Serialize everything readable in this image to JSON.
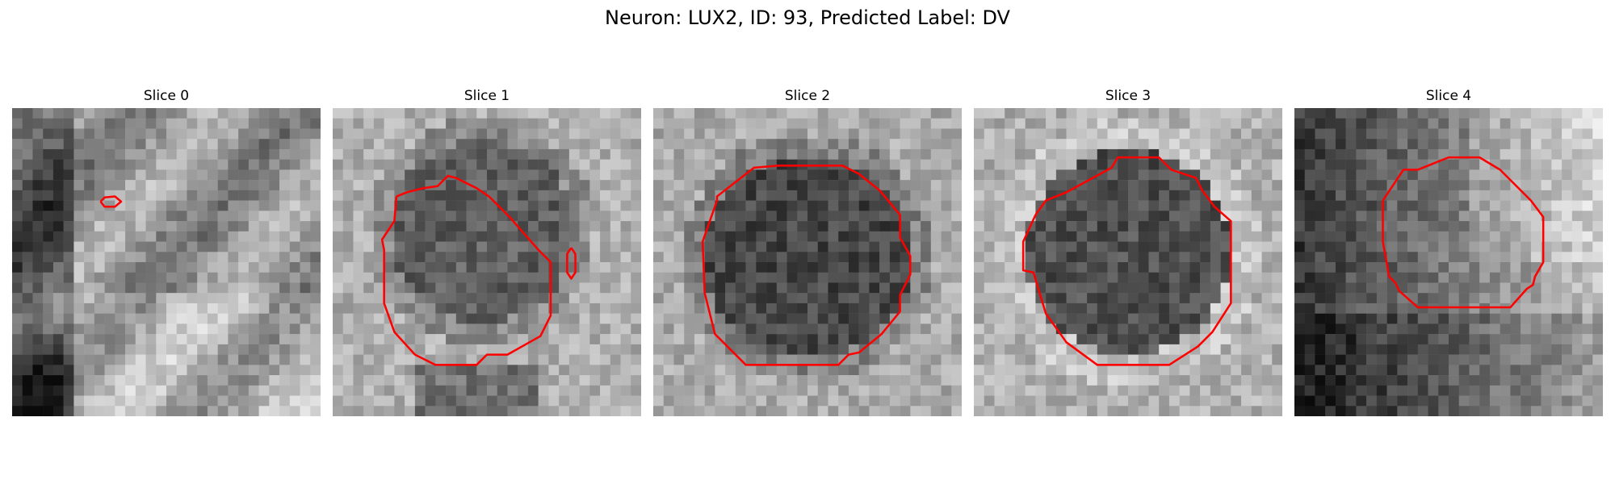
{
  "figure": {
    "title": "Neuron: LUX2, ID: 93, Predicted Label: DV"
  },
  "panels": [
    {
      "title": "Slice 0"
    },
    {
      "title": "Slice 1"
    },
    {
      "title": "Slice 2"
    },
    {
      "title": "Slice 3"
    },
    {
      "title": "Slice 4"
    }
  ],
  "colors": {
    "contour": "#ff0000",
    "background": "#ffffff"
  }
}
